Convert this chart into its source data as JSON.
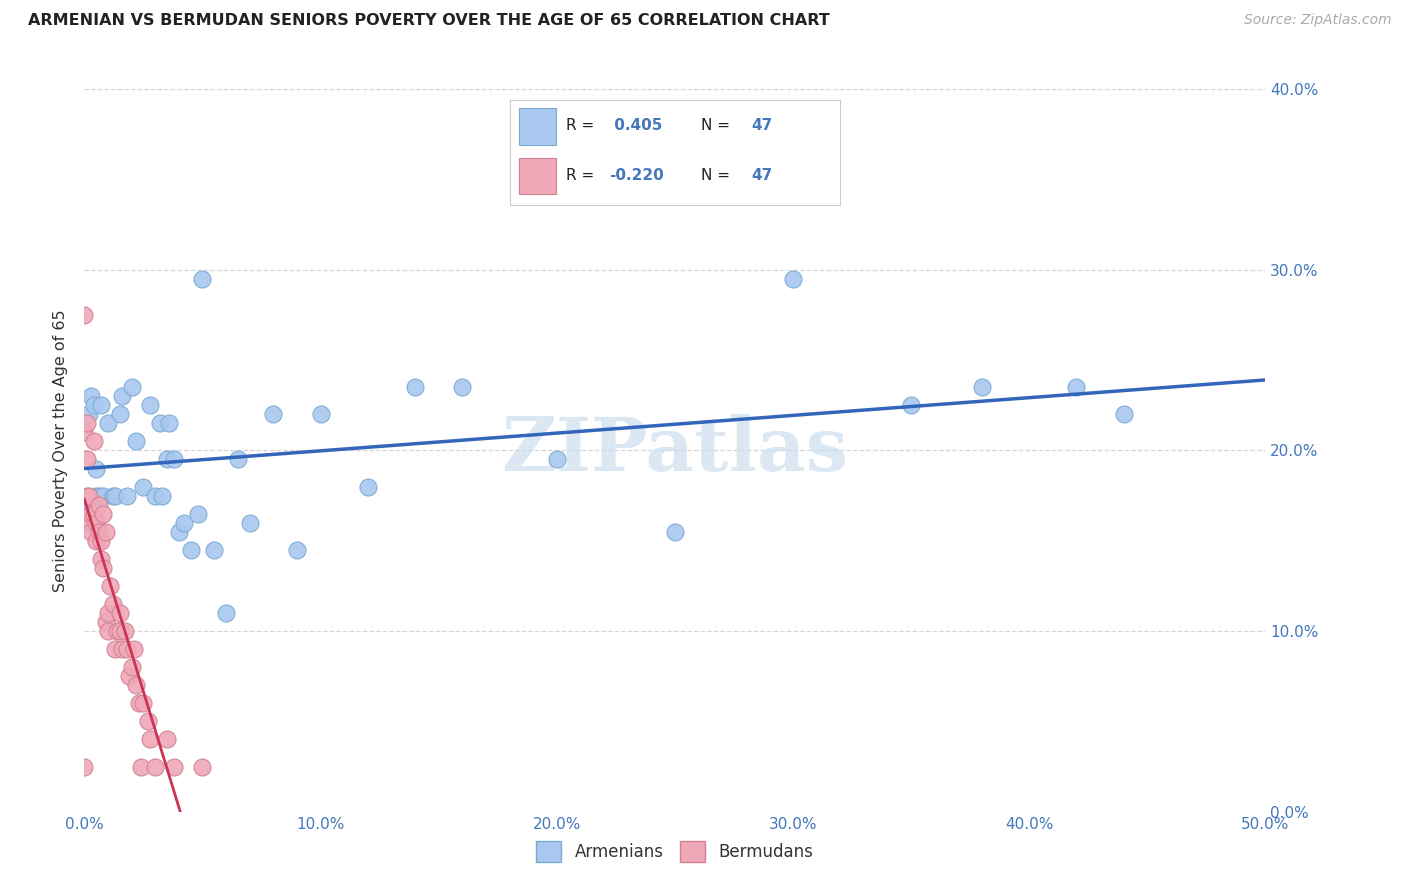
{
  "title": "ARMENIAN VS BERMUDAN SENIORS POVERTY OVER THE AGE OF 65 CORRELATION CHART",
  "source": "Source: ZipAtlas.com",
  "ylabel": "Seniors Poverty Over the Age of 65",
  "xlim": [
    0.0,
    0.5
  ],
  "ylim": [
    0.0,
    0.4
  ],
  "xticks": [
    0.0,
    0.1,
    0.2,
    0.3,
    0.4,
    0.5
  ],
  "yticks": [
    0.0,
    0.1,
    0.2,
    0.3,
    0.4
  ],
  "xticklabels": [
    "0.0%",
    "10.0%",
    "20.0%",
    "30.0%",
    "40.0%",
    "50.0%"
  ],
  "yticklabels_right": [
    "0.0%",
    "10.0%",
    "20.0%",
    "30.0%",
    "40.0%"
  ],
  "armenian_color": "#a8c8f0",
  "bermudan_color": "#f0a8b8",
  "armenian_edge": "#7aaad0",
  "bermudan_edge": "#d08090",
  "trend_armenian_color": "#3366bb",
  "trend_bermudan_color": "#cc3355",
  "tick_color": "#4477bb",
  "watermark_text": "ZIPatlas",
  "watermark_color": "#ccdff0",
  "legend_box_color": "#cccccc",
  "armenian_x": [
    0.002,
    0.003,
    0.003,
    0.004,
    0.005,
    0.005,
    0.006,
    0.007,
    0.008,
    0.01,
    0.012,
    0.013,
    0.015,
    0.016,
    0.018,
    0.02,
    0.022,
    0.025,
    0.028,
    0.03,
    0.032,
    0.033,
    0.035,
    0.036,
    0.038,
    0.04,
    0.042,
    0.045,
    0.048,
    0.05,
    0.055,
    0.06,
    0.065,
    0.07,
    0.08,
    0.09,
    0.1,
    0.12,
    0.14,
    0.16,
    0.2,
    0.25,
    0.3,
    0.35,
    0.38,
    0.42,
    0.44
  ],
  "armenian_y": [
    0.22,
    0.23,
    0.17,
    0.225,
    0.175,
    0.19,
    0.175,
    0.225,
    0.175,
    0.215,
    0.175,
    0.175,
    0.22,
    0.23,
    0.175,
    0.235,
    0.205,
    0.18,
    0.225,
    0.175,
    0.215,
    0.175,
    0.195,
    0.215,
    0.195,
    0.155,
    0.16,
    0.145,
    0.165,
    0.295,
    0.145,
    0.11,
    0.195,
    0.16,
    0.22,
    0.145,
    0.22,
    0.18,
    0.235,
    0.235,
    0.195,
    0.155,
    0.295,
    0.225,
    0.235,
    0.235,
    0.22
  ],
  "bermudan_x": [
    0.0,
    0.0,
    0.0,
    0.001,
    0.001,
    0.001,
    0.002,
    0.002,
    0.003,
    0.003,
    0.004,
    0.004,
    0.005,
    0.005,
    0.006,
    0.006,
    0.007,
    0.007,
    0.008,
    0.008,
    0.009,
    0.009,
    0.01,
    0.01,
    0.011,
    0.012,
    0.013,
    0.014,
    0.015,
    0.015,
    0.016,
    0.017,
    0.018,
    0.019,
    0.02,
    0.021,
    0.022,
    0.023,
    0.024,
    0.025,
    0.027,
    0.028,
    0.03,
    0.035,
    0.038,
    0.05,
    0.0
  ],
  "bermudan_y": [
    0.275,
    0.21,
    0.16,
    0.215,
    0.195,
    0.175,
    0.175,
    0.16,
    0.155,
    0.165,
    0.165,
    0.205,
    0.15,
    0.16,
    0.155,
    0.17,
    0.15,
    0.14,
    0.135,
    0.165,
    0.155,
    0.105,
    0.11,
    0.1,
    0.125,
    0.115,
    0.09,
    0.1,
    0.11,
    0.1,
    0.09,
    0.1,
    0.09,
    0.075,
    0.08,
    0.09,
    0.07,
    0.06,
    0.025,
    0.06,
    0.05,
    0.04,
    0.025,
    0.04,
    0.025,
    0.025,
    0.025
  ]
}
